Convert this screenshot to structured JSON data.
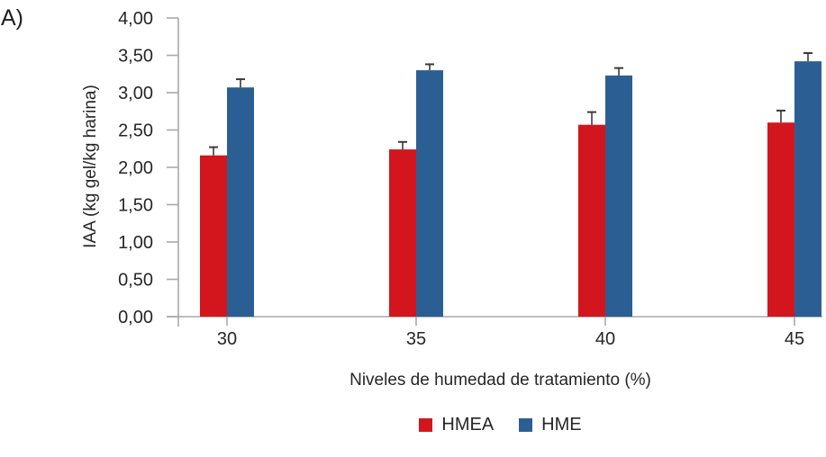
{
  "panel_label": "A)",
  "chart_data": {
    "type": "bar",
    "title": "",
    "xlabel": "Niveles de humedad de tratamiento (%)",
    "ylabel": "IAA (kg gel/kg harina)",
    "categories": [
      "30",
      "35",
      "40",
      "45"
    ],
    "series": [
      {
        "name": "HMEA",
        "color": "#d3161d",
        "values": [
          2.16,
          2.24,
          2.57,
          2.6
        ],
        "errors": [
          0.11,
          0.1,
          0.17,
          0.16
        ]
      },
      {
        "name": "HME",
        "color": "#2b5f94",
        "values": [
          3.07,
          3.3,
          3.23,
          3.42
        ],
        "errors": [
          0.11,
          0.08,
          0.1,
          0.11
        ]
      }
    ],
    "ylim": [
      0,
      4
    ],
    "yticks": [
      0,
      0.5,
      1,
      1.5,
      2,
      2.5,
      3,
      3.5,
      4
    ],
    "ytick_labels": [
      "0,00",
      "0,50",
      "1,00",
      "1,50",
      "2,00",
      "2,50",
      "3,00",
      "3,50",
      "4,00"
    ],
    "grid": false,
    "legend_position": "bottom",
    "error_bars": "upper",
    "axis_color": "#a8a8a8",
    "errorbar_color": "#3a3a3a",
    "text_color": "#262626"
  }
}
